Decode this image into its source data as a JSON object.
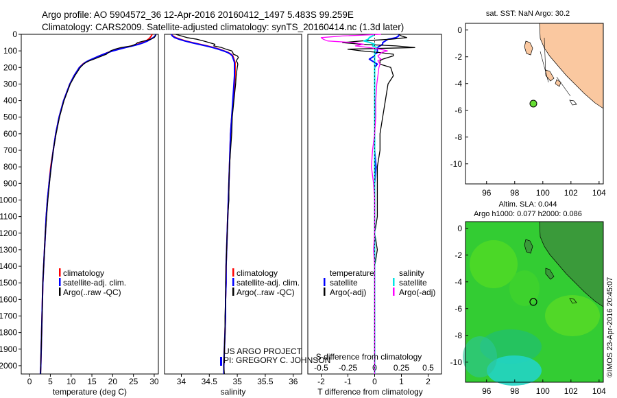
{
  "header": {
    "line1": "Argo profile: AO 5904572_36 12-Apr-2016 20160412_1497 5.483S 99.259E",
    "line2": "Climatology: CARS2009. Satellite-adjusted climatology: synTS_20160414.nc (1.3d later)"
  },
  "colors": {
    "climatology": "#ff0000",
    "satellite": "#0000ff",
    "argo": "#000000",
    "satellite_salinity": "#00e5e5",
    "argo_salinity_diff": "#ff00ff",
    "land": "#fac8a0",
    "marker": "#66dd33"
  },
  "depth_ticks": [
    "0",
    "100",
    "200",
    "300",
    "400",
    "500",
    "600",
    "700",
    "800",
    "900",
    "1000",
    "1100",
    "1200",
    "1300",
    "1400",
    "1500",
    "1600",
    "1700",
    "1800",
    "1900",
    "2000"
  ],
  "chart_data": [
    {
      "type": "line",
      "panel": "temperature",
      "xlabel": "temperature (deg C)",
      "ylabel": "pressure",
      "xlim": [
        -2,
        31
      ],
      "ylim": [
        2050,
        0
      ],
      "xticks": [
        0,
        5,
        10,
        15,
        20,
        25,
        30
      ],
      "xtick_labels": [
        "0",
        "5",
        "10",
        "15",
        "20",
        "25",
        "30"
      ],
      "legend": [
        "climatology",
        "satellite-adj. clim.",
        "Argo(..raw -QC)"
      ],
      "depth": [
        0,
        10,
        20,
        30,
        40,
        50,
        60,
        70,
        80,
        90,
        100,
        110,
        120,
        130,
        140,
        150,
        160,
        170,
        180,
        200,
        250,
        300,
        400,
        500,
        600,
        700,
        800,
        900,
        1000,
        1100,
        1200,
        1300,
        1400,
        1500,
        1600,
        1700,
        1800,
        1900,
        2000,
        2050
      ],
      "series": [
        {
          "name": "climatology",
          "values": [
            29.5,
            29.3,
            29.0,
            28.6,
            28.0,
            27.2,
            26.0,
            24.6,
            23.0,
            21.5,
            20.0,
            18.8,
            17.8,
            16.8,
            16.0,
            15.2,
            14.2,
            13.4,
            12.8,
            12.0,
            10.7,
            9.7,
            8.2,
            7.1,
            6.3,
            5.7,
            5.1,
            4.7,
            4.3,
            4.0,
            3.8,
            3.6,
            3.4,
            3.2,
            3.1,
            3.0,
            2.9,
            2.8,
            2.7,
            2.6
          ]
        },
        {
          "name": "satellite",
          "values": [
            30.4,
            30.2,
            29.8,
            29.1,
            28.4,
            27.5,
            26.3,
            24.8,
            23.1,
            21.6,
            20.1,
            18.9,
            17.8,
            16.8,
            15.9,
            15.0,
            14.1,
            13.4,
            12.9,
            12.0,
            10.7,
            9.7,
            8.2,
            7.1,
            6.3,
            5.7,
            5.2,
            4.7,
            4.3,
            4.0,
            3.8,
            3.6,
            3.4,
            3.2,
            3.1,
            3.0,
            2.9,
            2.8,
            2.7,
            2.6
          ]
        },
        {
          "name": "argo",
          "values": [
            30.4,
            30.3,
            30.0,
            29.2,
            27.5,
            26.0,
            25.5,
            24.5,
            22.0,
            20.5,
            19.5,
            19.0,
            18.5,
            17.5,
            16.5,
            15.5,
            14.4,
            13.6,
            13.0,
            12.2,
            10.9,
            9.8,
            8.3,
            7.2,
            6.4,
            5.7,
            5.2,
            4.8,
            4.4,
            4.1,
            3.8,
            3.6,
            3.4,
            3.2,
            3.1,
            3.0,
            2.9,
            2.8,
            2.7,
            2.7
          ]
        }
      ]
    },
    {
      "type": "line",
      "panel": "salinity",
      "xlabel": "salinity",
      "ylabel": "pressure",
      "xlim": [
        33.7,
        36.15
      ],
      "ylim": [
        2050,
        0
      ],
      "xticks": [
        34,
        34.5,
        35,
        35.5,
        36
      ],
      "xtick_labels": [
        "34",
        "34.5",
        "35",
        "35.5",
        "36"
      ],
      "legend": [
        "climatology",
        "satellite-adj. clim.",
        "Argo(..raw -QC)"
      ],
      "depth": [
        0,
        10,
        20,
        30,
        40,
        50,
        60,
        70,
        80,
        90,
        100,
        110,
        120,
        130,
        140,
        150,
        160,
        170,
        180,
        200,
        250,
        300,
        400,
        500,
        600,
        700,
        800,
        900,
        1000,
        1100,
        1200,
        1300,
        1400,
        1500,
        1600,
        1700,
        1800,
        1900,
        2000,
        2050
      ],
      "series": [
        {
          "name": "climatology",
          "values": [
            33.82,
            33.85,
            33.9,
            33.98,
            34.08,
            34.2,
            34.33,
            34.46,
            34.58,
            34.68,
            34.76,
            34.84,
            34.89,
            34.92,
            34.93,
            34.94,
            34.95,
            34.96,
            34.96,
            34.96,
            34.96,
            34.95,
            34.93,
            34.9,
            34.88,
            34.87,
            34.86,
            34.85,
            34.84,
            34.83,
            34.82,
            34.81,
            34.8,
            34.8,
            34.79,
            34.79,
            34.78,
            34.77,
            34.76,
            34.76
          ]
        },
        {
          "name": "satellite",
          "values": [
            33.82,
            33.84,
            33.88,
            33.96,
            34.06,
            34.18,
            34.31,
            34.44,
            34.56,
            34.66,
            34.75,
            34.83,
            34.88,
            34.91,
            34.92,
            34.93,
            34.94,
            34.95,
            34.95,
            34.95,
            34.95,
            34.94,
            34.92,
            34.9,
            34.88,
            34.87,
            34.86,
            34.85,
            34.84,
            34.83,
            34.82,
            34.81,
            34.8,
            34.8,
            34.79,
            34.79,
            34.78,
            34.77,
            34.76,
            34.76
          ]
        },
        {
          "name": "argo",
          "values": [
            33.9,
            34.0,
            34.1,
            34.28,
            34.4,
            34.5,
            34.6,
            34.58,
            34.72,
            34.8,
            34.9,
            34.92,
            34.93,
            35.0,
            35.02,
            35.0,
            34.98,
            35.0,
            35.01,
            35.0,
            34.98,
            34.97,
            34.94,
            34.91,
            34.9,
            34.88,
            34.86,
            34.85,
            34.85,
            34.83,
            34.82,
            34.81,
            34.8,
            34.79,
            34.79,
            34.78,
            34.78,
            34.77,
            34.76,
            34.77
          ]
        }
      ]
    },
    {
      "type": "line",
      "panel": "difference",
      "xlabel": "T difference from climatology",
      "secondary_xlabel": "S difference from climatology",
      "ylabel": "pressure",
      "xlim": [
        -2.5,
        2.5
      ],
      "ylim": [
        2050,
        0
      ],
      "xticks": [
        -2,
        -1,
        0,
        1,
        2
      ],
      "xtick_labels": [
        "-2",
        "-1",
        "0",
        "1",
        "2"
      ],
      "secondary_xticks": [
        -0.5,
        -0.25,
        0,
        0.25,
        0.5
      ],
      "secondary_xtick_labels": [
        "-0.5",
        "-0.25",
        "0",
        "0.25",
        "0.5"
      ],
      "legend_temperature": [
        "temperature",
        "satellite",
        "Argo(-adj)"
      ],
      "legend_salinity": [
        "salinity",
        "satellite",
        "Argo(-adj)"
      ],
      "depth": [
        0,
        10,
        20,
        30,
        40,
        50,
        60,
        70,
        80,
        90,
        100,
        110,
        120,
        130,
        140,
        150,
        160,
        170,
        180,
        200,
        250,
        300,
        400,
        500,
        600,
        700,
        800,
        900,
        1000,
        1100,
        1200,
        1300,
        1400,
        1500,
        1600,
        1700,
        1800,
        1900,
        2000,
        2050
      ],
      "series": [
        {
          "name": "temperature satellite",
          "axis": "T",
          "values": [
            0.9,
            0.9,
            0.8,
            0.5,
            0.4,
            0.3,
            0.3,
            0.2,
            0.1,
            0.1,
            0.1,
            0.1,
            0.0,
            0.0,
            -0.1,
            -0.2,
            -0.1,
            0.0,
            0.1,
            0.0,
            0.0,
            0.0,
            0.0,
            0.0,
            0.0,
            0.0,
            0.05,
            0.0,
            0.0,
            0.0,
            0.0,
            0.0,
            0.0,
            0.0,
            0.0,
            0.0,
            0.0,
            0.0,
            0.0,
            0.0
          ]
        },
        {
          "name": "temperature Argo(-adj)",
          "axis": "T",
          "values": [
            0.9,
            1.0,
            1.2,
            0.6,
            -0.5,
            -1.2,
            -0.5,
            0.8,
            1.5,
            -1.0,
            -0.5,
            0.2,
            0.7,
            0.7,
            0.5,
            0.3,
            0.2,
            0.2,
            0.2,
            0.6,
            0.7,
            0.5,
            0.4,
            0.3,
            0.2,
            0.2,
            0.1,
            0.1,
            0.1,
            0.1,
            0.0,
            0.1,
            0.0,
            0.0,
            0.0,
            0.0,
            0.0,
            0.0,
            0.0,
            0.0
          ]
        },
        {
          "name": "salinity satellite",
          "axis": "S",
          "values": [
            0.0,
            -0.02,
            -0.05,
            -0.06,
            -0.1,
            -0.04,
            0.0,
            -0.02,
            0.02,
            0.01,
            0.0,
            0.0,
            0.0,
            0.0,
            0.0,
            0.0,
            0.0,
            0.0,
            0.0,
            0.0,
            0.0,
            0.0,
            0.0,
            0.0,
            0.0,
            0.0,
            0.0,
            0.0,
            0.0,
            0.0,
            0.0,
            0.0,
            0.0,
            0.0,
            0.0,
            0.0,
            0.0,
            0.0,
            0.0,
            0.0
          ]
        },
        {
          "name": "salinity Argo(-adj)",
          "axis": "S",
          "values": [
            0.06,
            -0.3,
            -0.5,
            -0.48,
            -0.44,
            -0.2,
            -0.1,
            -0.18,
            -0.05,
            0.05,
            0.12,
            0.06,
            0.05,
            0.03,
            0.04,
            0.06,
            0.03,
            0.04,
            0.05,
            0.04,
            0.03,
            0.02,
            0.01,
            0.01,
            0.0,
            -0.02,
            -0.03,
            -0.01,
            0.0,
            0.0,
            0.0,
            -0.01,
            0.0,
            0.0,
            0.0,
            0.0,
            0.0,
            0.0,
            0.0,
            0.0
          ]
        }
      ]
    },
    {
      "type": "map",
      "panel": "sst_map",
      "title": "sat. SST: NaN Argo: 30.2",
      "xlim": [
        94.5,
        104.3
      ],
      "ylim": [
        -11.5,
        0.5
      ],
      "xticks": [
        96,
        98,
        100,
        102,
        104
      ],
      "yticks": [
        0,
        -2,
        -4,
        -6,
        -8,
        -10
      ],
      "argo_position": {
        "lon": 99.259,
        "lat": -5.483
      }
    },
    {
      "type": "map",
      "panel": "sla_map",
      "title": "Altim. SLA: 0.044",
      "subtitle": "Argo h1000: 0.077 h2000: 0.086",
      "xlim": [
        94.5,
        104.3
      ],
      "ylim": [
        -11.5,
        0.5
      ],
      "xticks": [
        96,
        98,
        100,
        102,
        104
      ],
      "yticks": [
        0,
        -2,
        -4,
        -6,
        -8,
        -10
      ],
      "argo_position": {
        "lon": 99.259,
        "lat": -5.483
      }
    }
  ],
  "annotations": {
    "project_line1": "US ARGO PROJECT",
    "project_line2": "PI: GREGORY C. JOHNSON",
    "credit": "©IMOS 23-Apr-2016 20:45:07"
  }
}
